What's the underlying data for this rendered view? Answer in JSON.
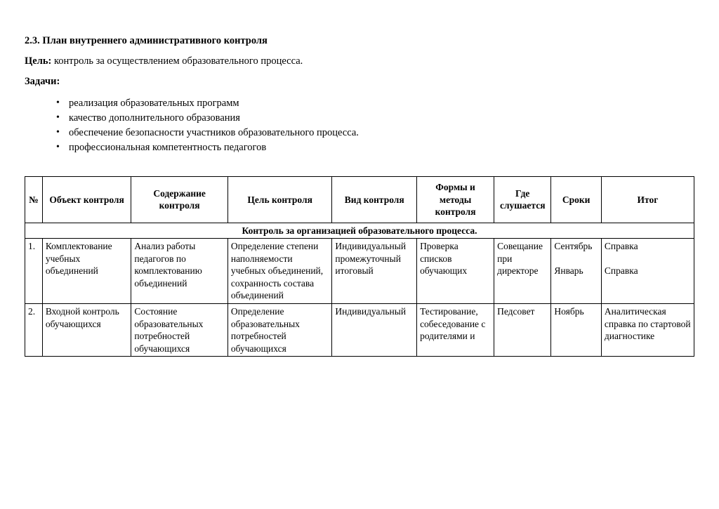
{
  "heading": "2.3. План внутреннего административного контроля",
  "goal": {
    "label": "Цель:",
    "text": " контроль за осуществлением образовательного процесса."
  },
  "tasksLabel": "Задачи:",
  "tasks": [
    "реализация образовательных программ",
    "качество дополнительного образования",
    "обеспечение безопасности участников образовательного процесса.",
    "профессиональная компетентность педагогов"
  ],
  "table": {
    "headers": {
      "num": "№",
      "object": "Объект контроля",
      "content": "Содержание контроля",
      "goal": "Цель контроля",
      "type": "Вид контроля",
      "forms": "Формы и методы контроля",
      "where": "Где слушается",
      "dates": "Сроки",
      "result": "Итог"
    },
    "sectionTitle": "Контроль за организацией образовательного процесса.",
    "rows": [
      {
        "num": "1.",
        "object": "Комплектование учебных объединений",
        "content": "Анализ работы педагогов по комплектованию объединений",
        "goal": "Определение степени наполняемости учебных объединений, сохранность состава объединений",
        "type": "Индивидуальный промежуточный итоговый",
        "forms": "Проверка списков обучающих",
        "where": "Совещание при директоре",
        "dates": "Сентябрь\n\nЯнварь",
        "result": "Справка\n\nСправка"
      },
      {
        "num": "2.",
        "object": "Входной контроль обучающихся",
        "content": " Состояние образовательных потребностей обучающихся",
        "goal": "Определение образовательных потребностей обучающихся",
        "type": "Индивидуальный",
        "forms": "Тестирование, собеседование с родителями и",
        "where": "Педсовет",
        "dates": "Ноябрь",
        "result": "Аналитическая справка по стартовой диагностике"
      }
    ]
  }
}
